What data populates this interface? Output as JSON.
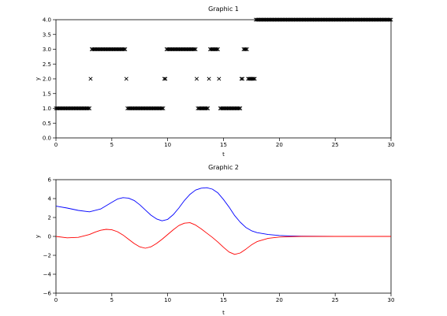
{
  "chart_data": [
    {
      "type": "scatter",
      "title": "Graphic 1",
      "xlabel": "t",
      "ylabel": "y",
      "xlim": [
        0,
        30
      ],
      "ylim": [
        0,
        4
      ],
      "x_ticks": [
        0,
        5,
        10,
        15,
        20,
        25,
        30
      ],
      "y_ticks": [
        0.0,
        0.5,
        1.0,
        1.5,
        2.0,
        2.5,
        3.0,
        3.5,
        4.0
      ],
      "x_tick_labels": [
        "0",
        "5",
        "10",
        "15",
        "20",
        "25",
        "30"
      ],
      "y_tick_labels": [
        "0.0",
        "0.5",
        "1.0",
        "1.5",
        "2.0",
        "2.5",
        "3.0",
        "3.5",
        "4.0"
      ],
      "grid": false,
      "marker": "x",
      "step": 0.1,
      "series": [
        {
          "color": "#000000",
          "segments": [
            {
              "y": 1,
              "x_start": 0.0,
              "x_end": 3.0
            },
            {
              "y": 2,
              "x_start": 3.1,
              "x_end": 3.1
            },
            {
              "y": 3,
              "x_start": 3.2,
              "x_end": 6.2
            },
            {
              "y": 2,
              "x_start": 6.3,
              "x_end": 6.3
            },
            {
              "y": 1,
              "x_start": 6.4,
              "x_end": 9.6
            },
            {
              "y": 2,
              "x_start": 9.7,
              "x_end": 9.8
            },
            {
              "y": 3,
              "x_start": 9.9,
              "x_end": 12.5
            },
            {
              "y": 2,
              "x_start": 12.6,
              "x_end": 12.6
            },
            {
              "y": 1,
              "x_start": 12.7,
              "x_end": 13.6
            },
            {
              "y": 2,
              "x_start": 13.7,
              "x_end": 13.7
            },
            {
              "y": 3,
              "x_start": 13.8,
              "x_end": 14.5
            },
            {
              "y": 2,
              "x_start": 14.6,
              "x_end": 14.6
            },
            {
              "y": 1,
              "x_start": 14.7,
              "x_end": 16.5
            },
            {
              "y": 2,
              "x_start": 16.6,
              "x_end": 16.7
            },
            {
              "y": 3,
              "x_start": 16.8,
              "x_end": 17.1
            },
            {
              "y": 2,
              "x_start": 17.2,
              "x_end": 17.8
            },
            {
              "y": 4,
              "x_start": 17.9,
              "x_end": 30.0
            }
          ]
        }
      ]
    },
    {
      "type": "line",
      "title": "Graphic 2",
      "xlabel": "t",
      "ylabel": "y",
      "xlim": [
        0,
        30
      ],
      "ylim": [
        -6,
        6
      ],
      "x_ticks": [
        0,
        5,
        10,
        15,
        20,
        25,
        30
      ],
      "y_ticks": [
        -6,
        -4,
        -2,
        0,
        2,
        4,
        6
      ],
      "x_tick_labels": [
        "0",
        "5",
        "10",
        "15",
        "20",
        "25",
        "30"
      ],
      "y_tick_labels": [
        "−6",
        "−4",
        "−2",
        "0",
        "2",
        "4",
        "6"
      ],
      "grid": false,
      "series": [
        {
          "color": "#0000ff",
          "x": [
            0,
            1,
            2,
            3,
            4,
            5,
            5.5,
            6,
            6.5,
            7,
            7.5,
            8,
            8.5,
            9,
            9.5,
            10,
            10.5,
            11,
            11.5,
            12,
            12.5,
            13,
            13.5,
            14,
            14.5,
            15,
            15.5,
            16,
            16.5,
            17,
            17.5,
            18,
            19,
            20,
            21,
            22,
            25,
            30
          ],
          "y": [
            3.2,
            3.0,
            2.75,
            2.6,
            2.9,
            3.6,
            3.95,
            4.1,
            4.05,
            3.8,
            3.35,
            2.8,
            2.25,
            1.85,
            1.65,
            1.8,
            2.3,
            3.0,
            3.8,
            4.45,
            4.9,
            5.1,
            5.15,
            5.0,
            4.6,
            3.9,
            3.1,
            2.2,
            1.5,
            0.95,
            0.6,
            0.4,
            0.2,
            0.1,
            0.05,
            0.02,
            0.0,
            0.0
          ]
        },
        {
          "color": "#ff0000",
          "x": [
            0,
            1,
            2,
            3,
            3.5,
            4,
            4.5,
            5,
            5.5,
            6,
            6.5,
            7,
            7.5,
            8,
            8.5,
            9,
            9.5,
            10,
            10.5,
            11,
            11.5,
            12,
            12.5,
            13,
            13.5,
            14,
            14.5,
            15,
            15.5,
            16,
            16.5,
            17,
            17.5,
            18,
            19,
            20,
            21,
            22,
            25,
            30
          ],
          "y": [
            0.0,
            -0.15,
            -0.1,
            0.2,
            0.45,
            0.65,
            0.75,
            0.7,
            0.5,
            0.15,
            -0.3,
            -0.75,
            -1.1,
            -1.25,
            -1.1,
            -0.75,
            -0.3,
            0.2,
            0.7,
            1.15,
            1.4,
            1.45,
            1.2,
            0.8,
            0.35,
            -0.1,
            -0.6,
            -1.15,
            -1.65,
            -1.9,
            -1.75,
            -1.35,
            -0.9,
            -0.55,
            -0.2,
            -0.07,
            -0.02,
            0.0,
            0.0,
            0.0
          ]
        }
      ]
    }
  ]
}
